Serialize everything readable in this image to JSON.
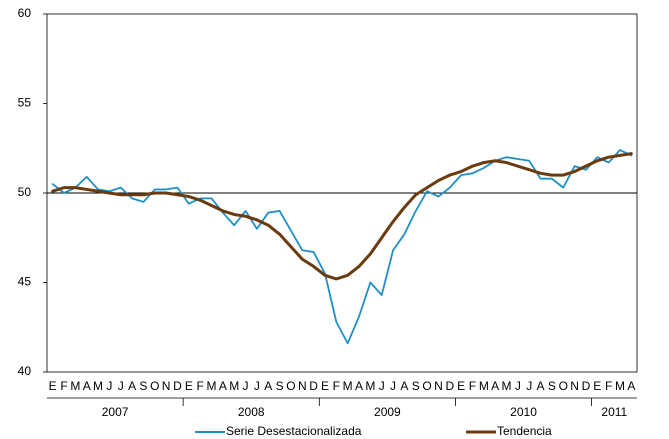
{
  "chart_data": {
    "type": "line",
    "categories": [
      "E",
      "F",
      "M",
      "A",
      "M",
      "J",
      "J",
      "A",
      "S",
      "O",
      "N",
      "D",
      "E",
      "F",
      "M",
      "A",
      "M",
      "J",
      "J",
      "A",
      "S",
      "O",
      "N",
      "D",
      "E",
      "F",
      "M",
      "A",
      "M",
      "J",
      "J",
      "A",
      "S",
      "O",
      "N",
      "D",
      "E",
      "F",
      "M",
      "A",
      "M",
      "J",
      "J",
      "A",
      "S",
      "O",
      "N",
      "D",
      "E",
      "F",
      "M",
      "A"
    ],
    "year_labels": [
      "2007",
      "2008",
      "2009",
      "2010",
      "2011"
    ],
    "series": [
      {
        "name": "Serie Desestacionalizada",
        "color": "#1f8fc8",
        "values": [
          50.5,
          50.0,
          50.3,
          50.9,
          50.2,
          50.1,
          50.3,
          49.7,
          49.5,
          50.2,
          50.2,
          50.3,
          49.4,
          49.7,
          49.7,
          48.9,
          48.2,
          49.0,
          48.0,
          48.9,
          49.0,
          47.9,
          46.8,
          46.7,
          45.5,
          42.8,
          41.6,
          43.1,
          45.0,
          44.3,
          46.8,
          47.7,
          49.0,
          50.1,
          49.8,
          50.3,
          51.0,
          51.1,
          51.4,
          51.8,
          52.0,
          51.9,
          51.8,
          50.8,
          50.8,
          50.3,
          51.5,
          51.3,
          52.0,
          51.7,
          52.4,
          52.1
        ]
      },
      {
        "name": "Tendencia",
        "color": "#6b3a0e",
        "values": [
          50.1,
          50.3,
          50.3,
          50.2,
          50.1,
          50.0,
          49.9,
          49.9,
          49.9,
          50.0,
          50.0,
          49.9,
          49.8,
          49.6,
          49.3,
          49.0,
          48.8,
          48.7,
          48.5,
          48.2,
          47.7,
          47.0,
          46.3,
          45.9,
          45.4,
          45.2,
          45.4,
          45.9,
          46.6,
          47.5,
          48.4,
          49.2,
          49.9,
          50.3,
          50.7,
          51.0,
          51.2,
          51.5,
          51.7,
          51.8,
          51.7,
          51.5,
          51.3,
          51.1,
          51.0,
          51.0,
          51.2,
          51.5,
          51.8,
          52.0,
          52.1,
          52.2
        ]
      }
    ],
    "ylim": [
      40,
      60
    ],
    "yticks": [
      40,
      45,
      50,
      55,
      60
    ],
    "reference_line": 50,
    "legend": "bottom"
  }
}
